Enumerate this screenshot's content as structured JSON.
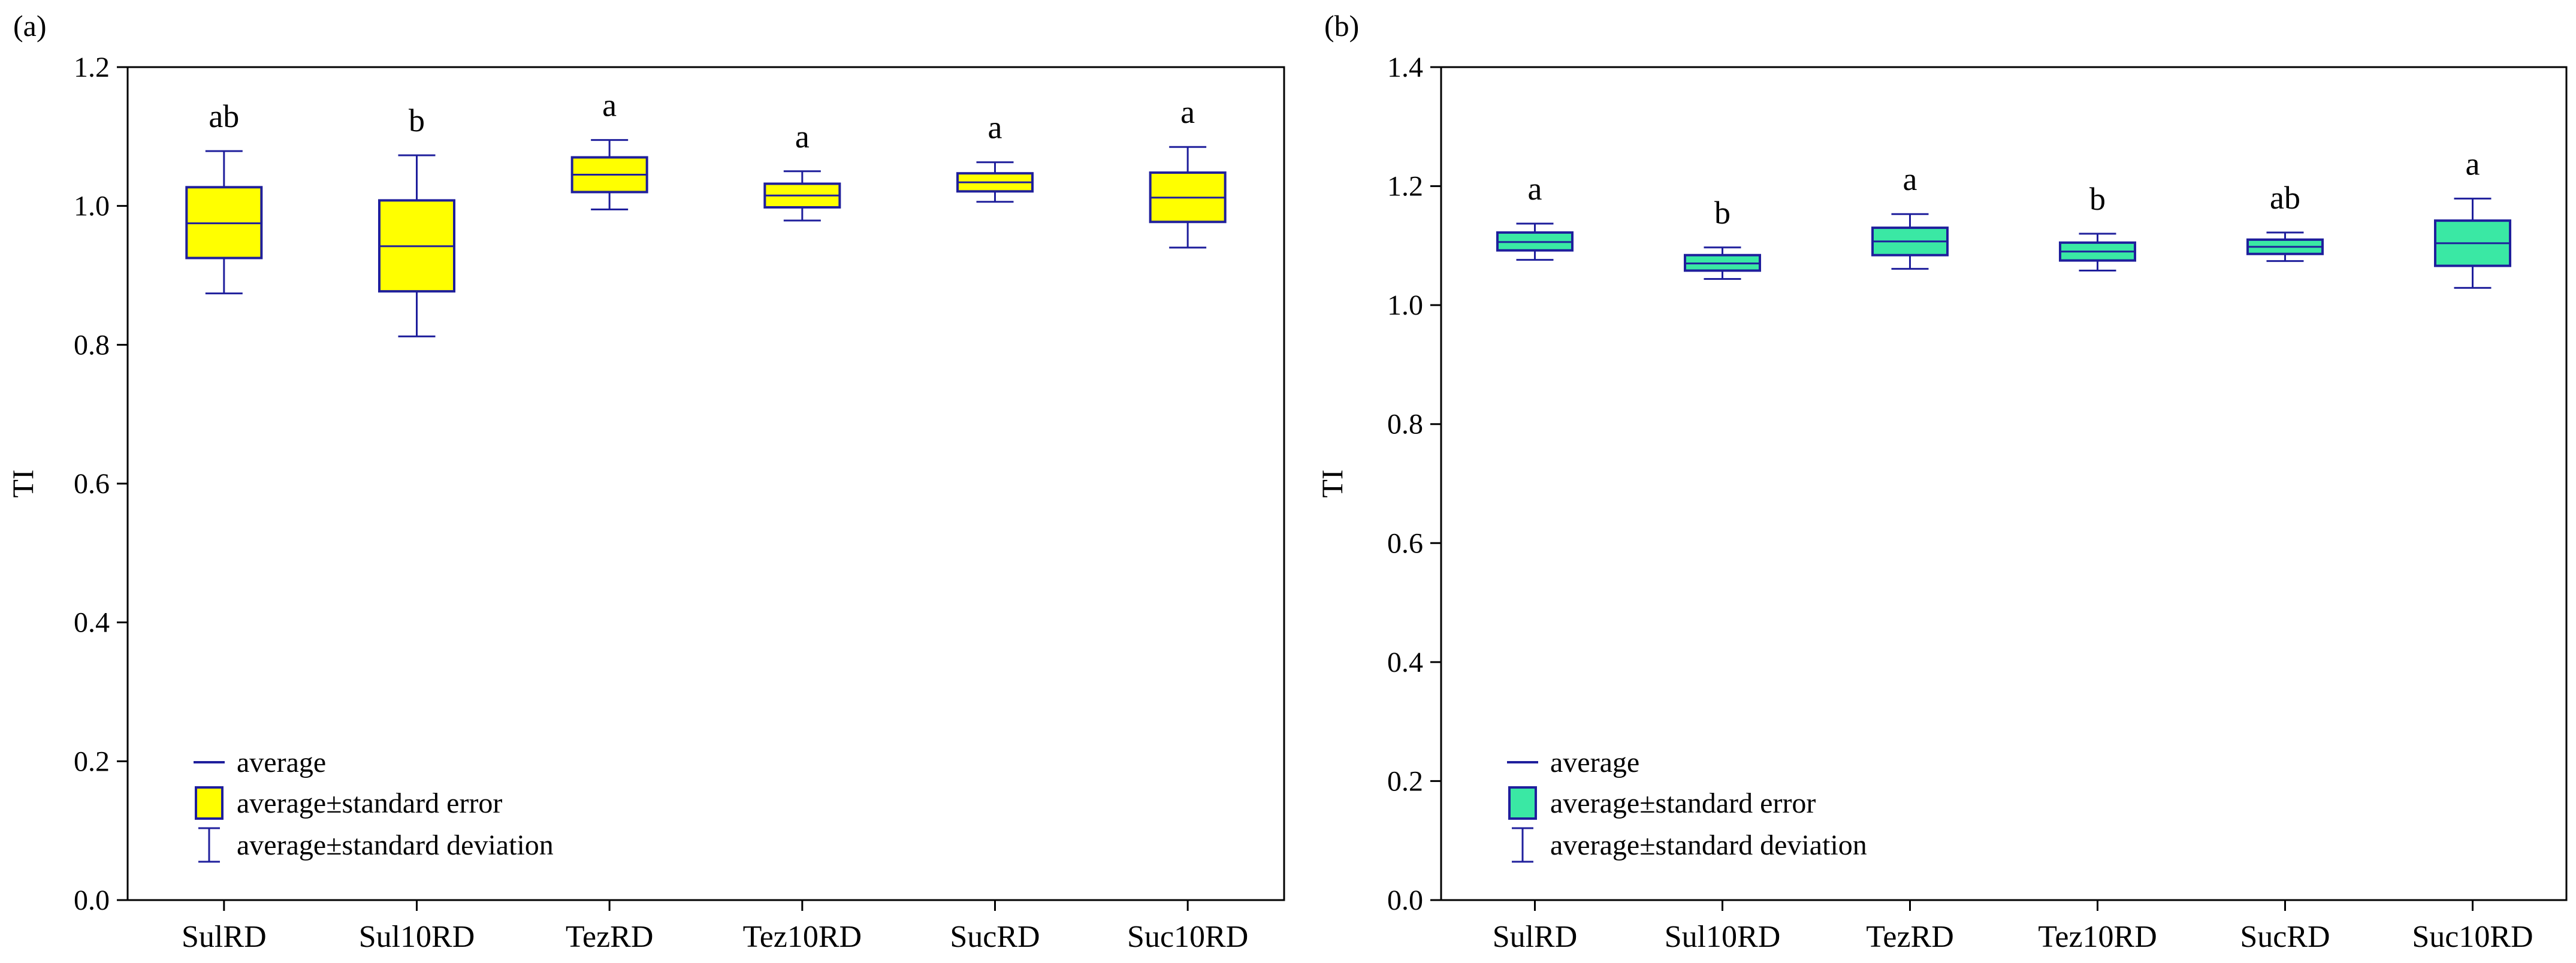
{
  "chart_data": [
    {
      "panel": "(a)",
      "type": "box",
      "ylabel": "TI",
      "ylim": [
        0.0,
        1.2
      ],
      "yticks": [
        "0.0",
        "0.2",
        "0.4",
        "0.6",
        "0.8",
        "1.0",
        "1.2"
      ],
      "categories": [
        "SulRD",
        "Sul10RD",
        "TezRD",
        "Tez10RD",
        "SucRD",
        "Suc10RD"
      ],
      "average": [
        0.975,
        0.942,
        1.045,
        1.015,
        1.034,
        1.012
      ],
      "se_low": [
        0.925,
        0.877,
        1.02,
        0.998,
        1.021,
        0.977
      ],
      "se_high": [
        1.027,
        1.008,
        1.07,
        1.032,
        1.047,
        1.048
      ],
      "sd_low": [
        0.874,
        0.812,
        0.995,
        0.979,
        1.006,
        0.94
      ],
      "sd_high": [
        1.079,
        1.073,
        1.095,
        1.05,
        1.063,
        1.085
      ],
      "significance": [
        "ab",
        "b",
        "a",
        "a",
        "a",
        "a"
      ],
      "box_color": "#ffff00",
      "line_color": "#1f1f9c",
      "grid": false,
      "legend_position": "bottom-left",
      "legend": [
        "average",
        "average±standard error",
        "average±standard deviation"
      ]
    },
    {
      "panel": "(b)",
      "type": "box",
      "ylabel": "TI",
      "ylim": [
        0.0,
        1.4
      ],
      "yticks": [
        "0.0",
        "0.2",
        "0.4",
        "0.6",
        "0.8",
        "1.0",
        "1.2",
        "1.4"
      ],
      "categories": [
        "SulRD",
        "Sul10RD",
        "TezRD",
        "Tez10RD",
        "SucRD",
        "Suc10RD"
      ],
      "average": [
        1.106,
        1.07,
        1.107,
        1.09,
        1.098,
        1.104
      ],
      "se_low": [
        1.092,
        1.058,
        1.084,
        1.075,
        1.086,
        1.066
      ],
      "se_high": [
        1.122,
        1.084,
        1.13,
        1.105,
        1.11,
        1.142
      ],
      "sd_low": [
        1.076,
        1.044,
        1.061,
        1.058,
        1.074,
        1.029
      ],
      "sd_high": [
        1.137,
        1.097,
        1.153,
        1.12,
        1.122,
        1.179
      ],
      "significance": [
        "a",
        "b",
        "a",
        "b",
        "ab",
        "a"
      ],
      "box_color": "#3ae8a4",
      "line_color": "#1f1f9c",
      "grid": false,
      "legend_position": "bottom-left",
      "legend": [
        "average",
        "average±standard error",
        "average±standard deviation"
      ]
    }
  ]
}
